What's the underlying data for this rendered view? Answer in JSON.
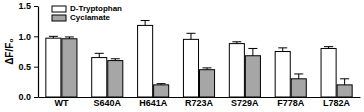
{
  "chart_data": {
    "type": "bar",
    "y_label": "ΔF/F₀",
    "categories": [
      "WT",
      "S640A",
      "H641A",
      "R723A",
      "S729A",
      "F778A",
      "L782A"
    ],
    "series": [
      {
        "name": "D-Tryptophan",
        "color": "#ffffff",
        "values": [
          0.97,
          0.65,
          1.18,
          0.95,
          0.88,
          0.75,
          0.8
        ],
        "errors": [
          0.03,
          0.07,
          0.08,
          0.1,
          0.03,
          0.06,
          0.03
        ]
      },
      {
        "name": "Cyclamate",
        "color": "#a6a6a6",
        "values": [
          0.96,
          0.6,
          0.2,
          0.45,
          0.68,
          0.3,
          0.2
        ],
        "errors": [
          0.03,
          0.03,
          0.02,
          0.03,
          0.12,
          0.08,
          0.1
        ]
      }
    ],
    "ylim": [
      0,
      1.5
    ],
    "yticks": [
      {
        "value": 0,
        "label": "0.0"
      },
      {
        "value": 0.5,
        "label": "0.5"
      },
      {
        "value": 1,
        "label": "1.0"
      },
      {
        "value": 1.5,
        "label": "1.5"
      }
    ],
    "legend": "upper left",
    "grid": false
  }
}
